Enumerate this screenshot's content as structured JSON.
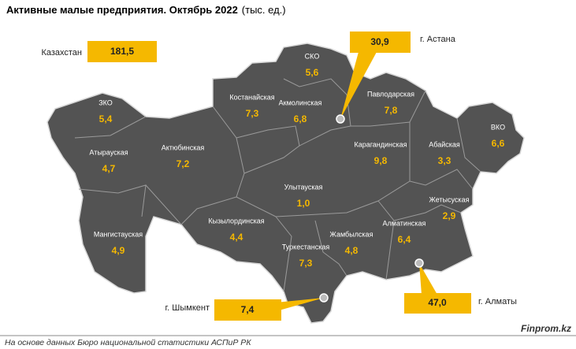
{
  "title": "Активные малые предприятия. Октябрь 2022",
  "title_unit": "(тыс. ед.)",
  "country": {
    "label": "Казахстан",
    "value": "181,5"
  },
  "cities": [
    {
      "label": "г. Астана",
      "value": "30,9"
    },
    {
      "label": "г. Шымкент",
      "value": "7,4"
    },
    {
      "label": "г. Алматы",
      "value": "47,0"
    }
  ],
  "regions": [
    {
      "name": "ЗКО",
      "value": "5,4"
    },
    {
      "name": "Атырауская",
      "value": "4,7"
    },
    {
      "name": "Мангистауская",
      "value": "4,9"
    },
    {
      "name": "Актюбинская",
      "value": "7,2"
    },
    {
      "name": "Костанайская",
      "value": "7,3"
    },
    {
      "name": "СКО",
      "value": "5,6"
    },
    {
      "name": "Акмолинская",
      "value": "6,8"
    },
    {
      "name": "Павлодарская",
      "value": "7,8"
    },
    {
      "name": "ВКО",
      "value": "6,6"
    },
    {
      "name": "Карагандинская",
      "value": "9,8"
    },
    {
      "name": "Абайская",
      "value": "3,3"
    },
    {
      "name": "Улытауская",
      "value": "1,0"
    },
    {
      "name": "Жетысуская",
      "value": "2,9"
    },
    {
      "name": "Кызылординская",
      "value": "4,4"
    },
    {
      "name": "Алматинская",
      "value": "6,4"
    },
    {
      "name": "Жамбылская",
      "value": "4,8"
    },
    {
      "name": "Туркестанская",
      "value": "7,3"
    }
  ],
  "source": "На основе данных Бюро национальной статистики АСПиР РК",
  "brand": "Finprom.kz"
}
